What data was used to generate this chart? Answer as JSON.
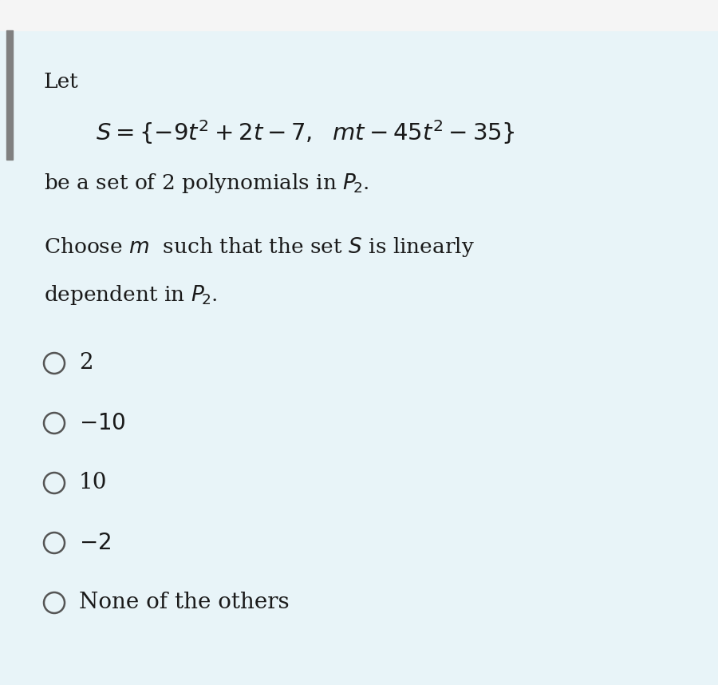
{
  "background_color": "#e8f4f8",
  "left_bar_color": "#808080",
  "top_bar_color": "#f5f5f5",
  "text_color": "#1a1a1a",
  "font_size_body": 19,
  "font_size_formula": 21,
  "fig_width": 9.0,
  "fig_height": 8.58,
  "dpi": 100
}
